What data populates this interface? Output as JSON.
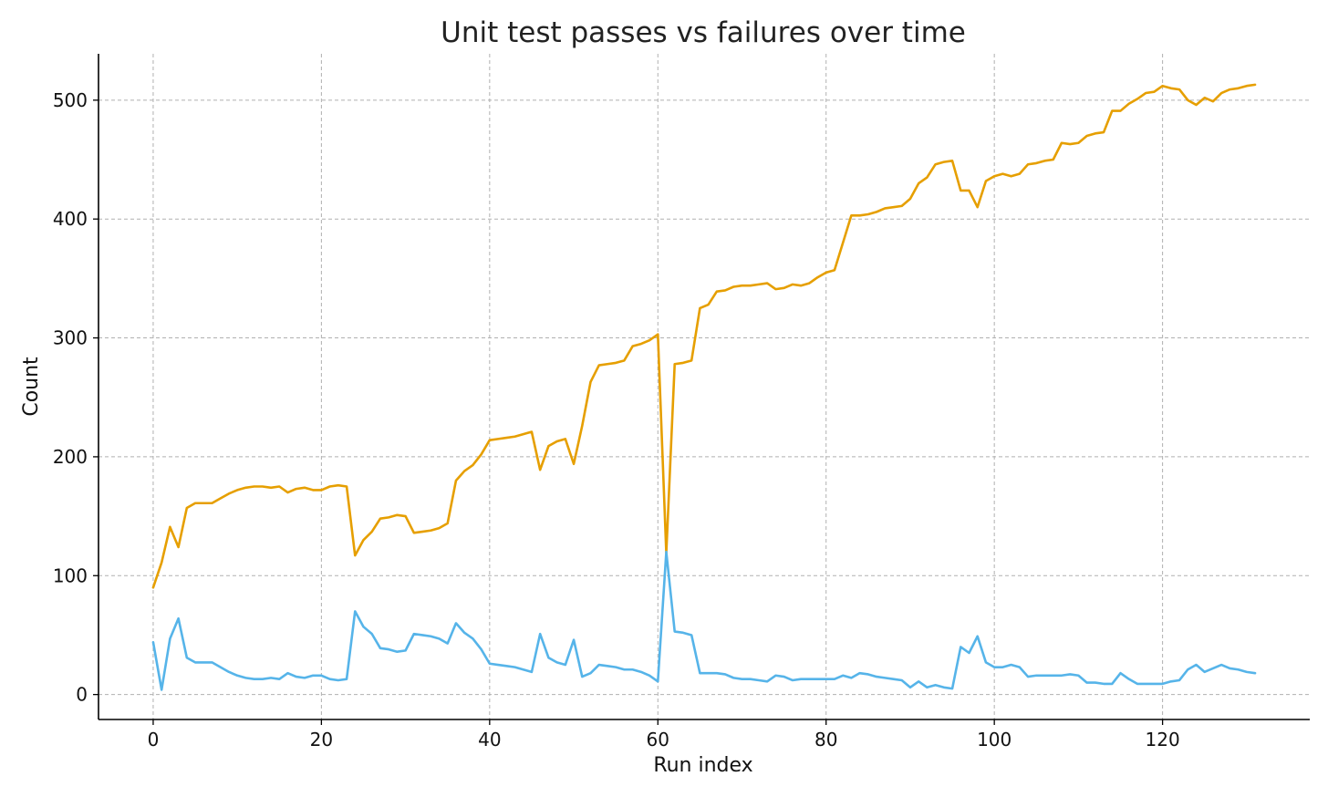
{
  "chart_data": {
    "type": "line",
    "title": "Unit test passes vs failures over time",
    "xlabel": "Run index",
    "ylabel": "Count",
    "xlim": [
      -6.5,
      137.5
    ],
    "ylim": [
      -21,
      539
    ],
    "xticks": [
      0,
      20,
      40,
      60,
      80,
      100,
      120
    ],
    "yticks": [
      0,
      100,
      200,
      300,
      400,
      500
    ],
    "grid": true,
    "legend": "none",
    "colors": {
      "passes": "#E69F00",
      "failures": "#56B4E9"
    },
    "series": [
      {
        "key": "passes",
        "color": "#E69F00",
        "values": [
          90,
          111,
          141,
          124,
          157,
          161,
          161,
          161,
          165,
          169,
          172,
          174,
          175,
          175,
          174,
          175,
          170,
          173,
          174,
          172,
          172,
          175,
          176,
          175,
          117,
          130,
          137,
          148,
          149,
          151,
          150,
          136,
          137,
          138,
          140,
          144,
          180,
          188,
          193,
          202,
          214,
          215,
          216,
          217,
          219,
          221,
          189,
          209,
          213,
          215,
          194,
          226,
          263,
          277,
          278,
          279,
          281,
          293,
          295,
          298,
          303,
          119,
          278,
          279,
          281,
          325,
          328,
          339,
          340,
          343,
          344,
          344,
          345,
          346,
          341,
          342,
          345,
          344,
          346,
          351,
          355,
          357,
          380,
          403,
          403,
          404,
          406,
          409,
          410,
          411,
          417,
          430,
          435,
          446,
          448,
          449,
          424,
          424,
          410,
          432,
          436,
          438,
          436,
          438,
          446,
          447,
          449,
          450,
          464,
          463,
          464,
          470,
          472,
          473,
          491,
          491,
          497,
          501,
          506,
          507,
          512,
          510,
          509,
          500,
          496,
          502,
          499,
          506,
          509,
          510,
          512,
          513
        ]
      },
      {
        "key": "failures",
        "color": "#56B4E9",
        "values": [
          44,
          4,
          47,
          64,
          31,
          27,
          27,
          27,
          23,
          19,
          16,
          14,
          13,
          13,
          14,
          13,
          18,
          15,
          14,
          16,
          16,
          13,
          12,
          13,
          70,
          57,
          51,
          39,
          38,
          36,
          37,
          51,
          50,
          49,
          47,
          43,
          60,
          52,
          47,
          38,
          26,
          25,
          24,
          23,
          21,
          19,
          51,
          31,
          27,
          25,
          46,
          15,
          18,
          25,
          24,
          23,
          21,
          21,
          19,
          16,
          11,
          120,
          53,
          52,
          50,
          18,
          18,
          18,
          17,
          14,
          13,
          13,
          12,
          11,
          16,
          15,
          12,
          13,
          13,
          13,
          13,
          13,
          16,
          14,
          18,
          17,
          15,
          14,
          13,
          12,
          6,
          11,
          6,
          8,
          6,
          5,
          40,
          35,
          49,
          27,
          23,
          23,
          25,
          23,
          15,
          16,
          16,
          16,
          16,
          17,
          16,
          10,
          10,
          9,
          9,
          18,
          13,
          9,
          9,
          9,
          9,
          11,
          12,
          21,
          25,
          19,
          22,
          25,
          22,
          21,
          19,
          18
        ]
      }
    ]
  }
}
